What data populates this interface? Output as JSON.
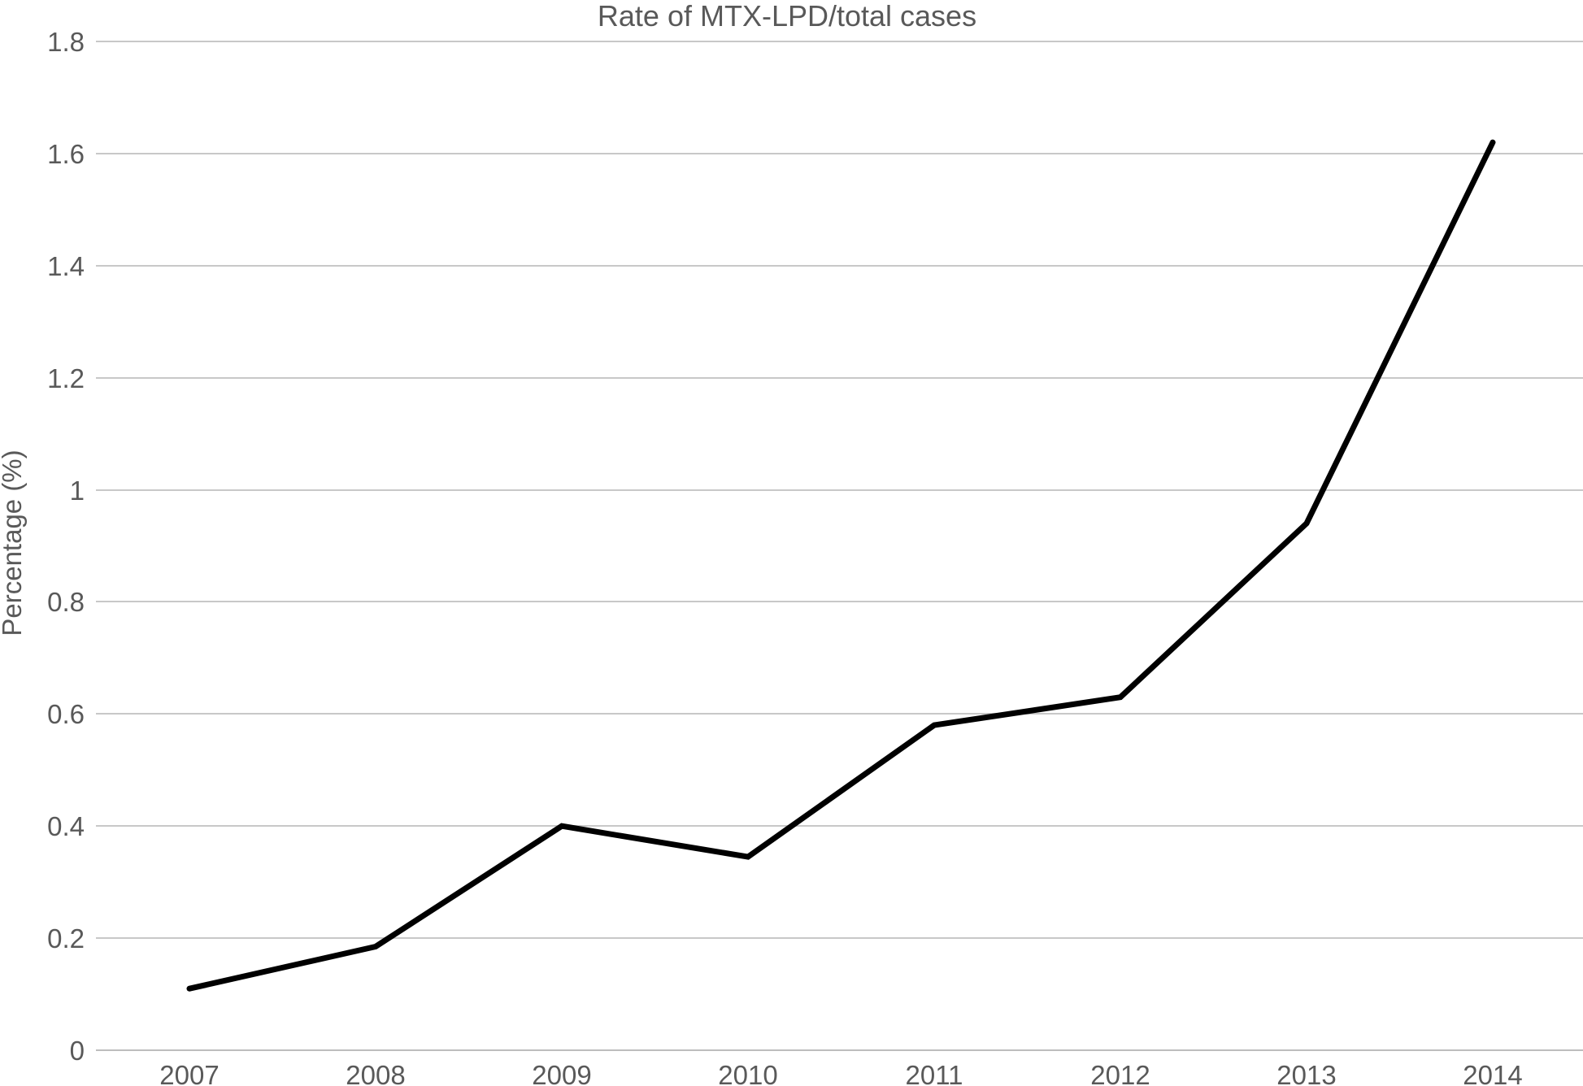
{
  "chart_data": {
    "type": "line",
    "title": "Rate of MTX-LPD/total cases",
    "xlabel": "",
    "ylabel": "Percentage (%)",
    "categories": [
      "2007",
      "2008",
      "2009",
      "2010",
      "2011",
      "2012",
      "2013",
      "2014"
    ],
    "series": [
      {
        "values": [
          0.11,
          0.185,
          0.4,
          0.345,
          0.58,
          0.63,
          0.94,
          1.62
        ]
      }
    ],
    "ylim": [
      0,
      1.8
    ],
    "y_ticks": [
      0,
      0.2,
      0.4,
      0.6,
      0.8,
      1,
      1.2,
      1.4,
      1.6,
      1.8
    ],
    "y_tick_labels": [
      "0",
      "0.2",
      "0.4",
      "0.6",
      "0.8",
      "1",
      "1.2",
      "1.4",
      "1.6",
      "1.8"
    ],
    "grid": true,
    "legend": "none",
    "line_color": "#000000",
    "grid_color": "#c8c8c8",
    "text_color": "#595959"
  }
}
